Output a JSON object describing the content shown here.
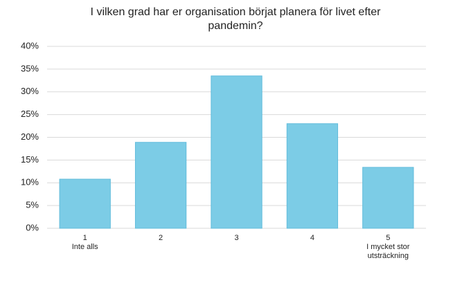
{
  "chart_data": {
    "type": "bar",
    "title": "I vilken grad har er organisation börjat planera för livet efter pandemin?",
    "categories": [
      [
        "1",
        "Inte alls"
      ],
      [
        "2"
      ],
      [
        "3"
      ],
      [
        "4"
      ],
      [
        "5",
        "I mycket stor",
        "utsträckning"
      ]
    ],
    "values": [
      10.8,
      18.9,
      33.5,
      23.0,
      13.4
    ],
    "color": "#7ccce6",
    "ylim": [
      0,
      40
    ],
    "yticks": [
      {
        "value": 0,
        "label": "0%"
      },
      {
        "value": 5,
        "label": "5%"
      },
      {
        "value": 10,
        "label": "10%"
      },
      {
        "value": 15,
        "label": "15%"
      },
      {
        "value": 20,
        "label": "20%"
      },
      {
        "value": 25,
        "label": "25%"
      },
      {
        "value": 30,
        "label": "30%"
      },
      {
        "value": 35,
        "label": "35%"
      },
      {
        "value": 40,
        "label": "40%"
      }
    ],
    "grid": true
  }
}
